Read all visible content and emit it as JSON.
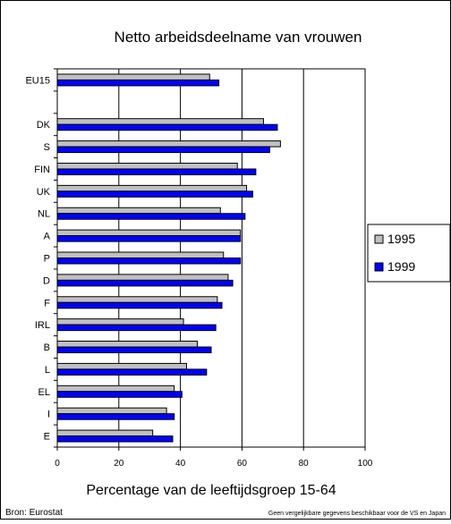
{
  "chart_data": {
    "type": "bar",
    "orientation": "horizontal",
    "title": "Netto arbeidsdeelname van vrouwen",
    "xlabel": "Percentage van de leeftijdsgroep 15-64",
    "ylabel": "",
    "xlim": [
      0,
      100
    ],
    "xticks": [
      0,
      20,
      40,
      60,
      80,
      100
    ],
    "grid": true,
    "legend_position": "right",
    "categories": [
      "EU15",
      "",
      "DK",
      "S",
      "FIN",
      "UK",
      "NL",
      "A",
      "P",
      "D",
      "F",
      "IRL",
      "B",
      "L",
      "EL",
      "I",
      "E"
    ],
    "series": [
      {
        "name": "1995",
        "color": "#c0c0c0",
        "values": [
          49.5,
          null,
          67,
          72.5,
          58.5,
          61.5,
          53,
          59.5,
          54,
          55.5,
          52,
          41,
          45.5,
          42,
          38,
          35.5,
          31
        ]
      },
      {
        "name": "1999",
        "color": "#0000ff",
        "values": [
          52.5,
          null,
          71.5,
          69,
          64.5,
          63.5,
          61,
          59.5,
          59.5,
          57,
          53.5,
          51.5,
          50,
          48.5,
          40.5,
          38,
          37.5
        ]
      }
    ],
    "footnote_left": "Bron: Eurostat",
    "footnote_right": "Geen vergelijkbare gegevens beschikbaar voor de VS en Japan"
  }
}
